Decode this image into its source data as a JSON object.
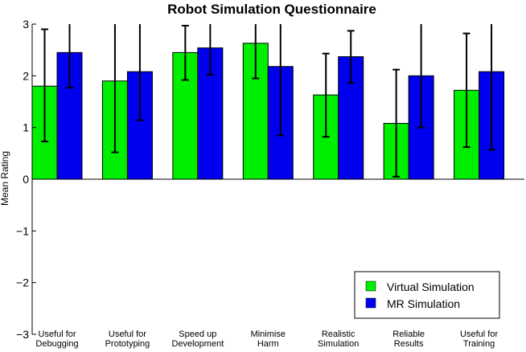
{
  "chart_data": {
    "type": "bar",
    "title": "Robot Simulation Questionnaire",
    "xlabel": "",
    "ylabel": "Mean Rating",
    "ylim": [
      -3,
      3
    ],
    "yticks": [
      "−3",
      "−2",
      "−1",
      "0",
      "1",
      "2",
      "3"
    ],
    "grid": false,
    "legend_position": "bottom-right",
    "categories": [
      [
        "Useful for",
        "Debugging"
      ],
      [
        "Useful for",
        "Prototyping"
      ],
      [
        "Speed up",
        "Development"
      ],
      [
        "Minimise",
        "Harm"
      ],
      [
        "Realistic",
        "Simulation"
      ],
      [
        "Reliable",
        "Results"
      ],
      [
        "Useful for",
        "Training"
      ]
    ],
    "series": [
      {
        "name": "Virtual Simulation",
        "color": "#00ee00",
        "values": [
          1.8,
          1.9,
          2.45,
          2.63,
          1.63,
          1.08,
          1.72
        ],
        "error_low": [
          0.73,
          0.52,
          1.92,
          1.95,
          0.82,
          0.05,
          0.62
        ],
        "error_high": [
          2.9,
          3.0,
          2.97,
          3.0,
          2.43,
          2.12,
          2.82
        ]
      },
      {
        "name": "MR Simulation",
        "color": "#0000ee",
        "values": [
          2.45,
          2.08,
          2.54,
          2.18,
          2.37,
          2.0,
          2.08
        ],
        "error_low": [
          1.77,
          1.14,
          2.02,
          0.85,
          1.86,
          1.0,
          0.57
        ],
        "error_high": [
          3.0,
          3.0,
          3.0,
          3.0,
          2.87,
          3.0,
          3.0
        ]
      }
    ]
  }
}
